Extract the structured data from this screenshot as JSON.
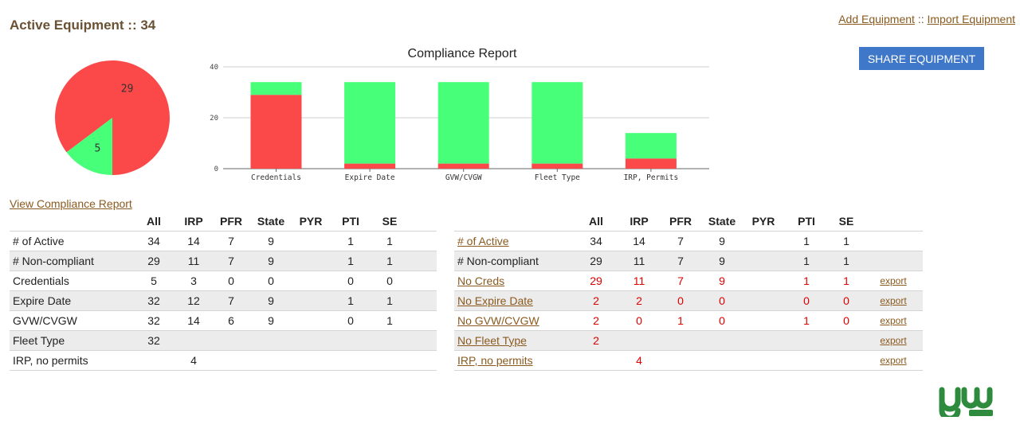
{
  "header": {
    "title": "Active Equipment :: 34",
    "add_link": "Add Equipment",
    "separator": "::",
    "import_link": "Import Equipment",
    "share_button": "SHARE EQUIPMENT"
  },
  "colors": {
    "noncompliant": "#fb4849",
    "compliant": "#48ff79",
    "link": "#8a5a1f",
    "button": "#3f77c9",
    "alert_text": "#e00000"
  },
  "pie_chart": {
    "chart_data": {
      "type": "pie",
      "slices": [
        {
          "label": "29",
          "value": 29,
          "color": "#fb4849"
        },
        {
          "label": "5",
          "value": 5,
          "color": "#48ff79"
        }
      ]
    }
  },
  "bar_chart": {
    "chart_data": {
      "type": "bar",
      "stacked": true,
      "title": "Compliance Report",
      "categories": [
        "Credentials",
        "Expire Date",
        "GVW/CVGW",
        "Fleet Type",
        "IRP, Permits"
      ],
      "series": [
        {
          "values": [
            29,
            2,
            2,
            2,
            4
          ],
          "color": "#fb4849"
        },
        {
          "values": [
            5,
            32,
            32,
            32,
            10
          ],
          "color": "#48ff79"
        }
      ],
      "ylim": [
        0,
        40
      ],
      "yticks": [
        0,
        20,
        40
      ],
      "grid": true
    }
  },
  "view_report_link": "View Compliance Report",
  "left_table": {
    "columns": [
      "",
      "All",
      "IRP",
      "PFR",
      "State",
      "PYR",
      "PTI",
      "SE"
    ],
    "rows": [
      {
        "label": "# of Active",
        "cells": [
          "34",
          "14",
          "7",
          "9",
          "",
          "1",
          "1"
        ]
      },
      {
        "label": "# Non-compliant",
        "cells": [
          "29",
          "11",
          "7",
          "9",
          "",
          "1",
          "1"
        ]
      },
      {
        "label": "Credentials",
        "cells": [
          "5",
          "3",
          "0",
          "0",
          "",
          "0",
          "0"
        ]
      },
      {
        "label": "Expire Date",
        "cells": [
          "32",
          "12",
          "7",
          "9",
          "",
          "1",
          "1"
        ]
      },
      {
        "label": "GVW/CVGW",
        "cells": [
          "32",
          "14",
          "6",
          "9",
          "",
          "0",
          "1"
        ]
      },
      {
        "label": "Fleet Type",
        "cells": [
          "32",
          "",
          "",
          "",
          "",
          "",
          ""
        ]
      },
      {
        "label": "IRP, no permits",
        "cells": [
          "",
          "4",
          "",
          "",
          "",
          "",
          ""
        ]
      }
    ]
  },
  "right_table": {
    "columns": [
      "",
      "All",
      "IRP",
      "PFR",
      "State",
      "PYR",
      "PTI",
      "SE",
      ""
    ],
    "rows": [
      {
        "label": "# of Active",
        "cells": [
          "34",
          "14",
          "7",
          "9",
          "",
          "1",
          "1"
        ],
        "export": ""
      },
      {
        "label": "# Non-compliant",
        "cells": [
          "29",
          "11",
          "7",
          "9",
          "",
          "1",
          "1"
        ],
        "export": ""
      },
      {
        "label": "No Creds",
        "cells": [
          "29",
          "11",
          "7",
          "9",
          "",
          "1",
          "1"
        ],
        "export": "export"
      },
      {
        "label": "No Expire Date",
        "cells": [
          "2",
          "2",
          "0",
          "0",
          "",
          "0",
          "0"
        ],
        "export": "export"
      },
      {
        "label": "No GVW/CVGW",
        "cells": [
          "2",
          "0",
          "1",
          "0",
          "",
          "1",
          "0"
        ],
        "export": "export"
      },
      {
        "label": "No Fleet Type",
        "cells": [
          "2",
          "",
          "",
          "",
          "",
          "",
          ""
        ],
        "export": "export"
      },
      {
        "label": "IRP, no permits",
        "cells": [
          "",
          "4",
          "",
          "",
          "",
          "",
          ""
        ],
        "export": "export"
      }
    ]
  }
}
